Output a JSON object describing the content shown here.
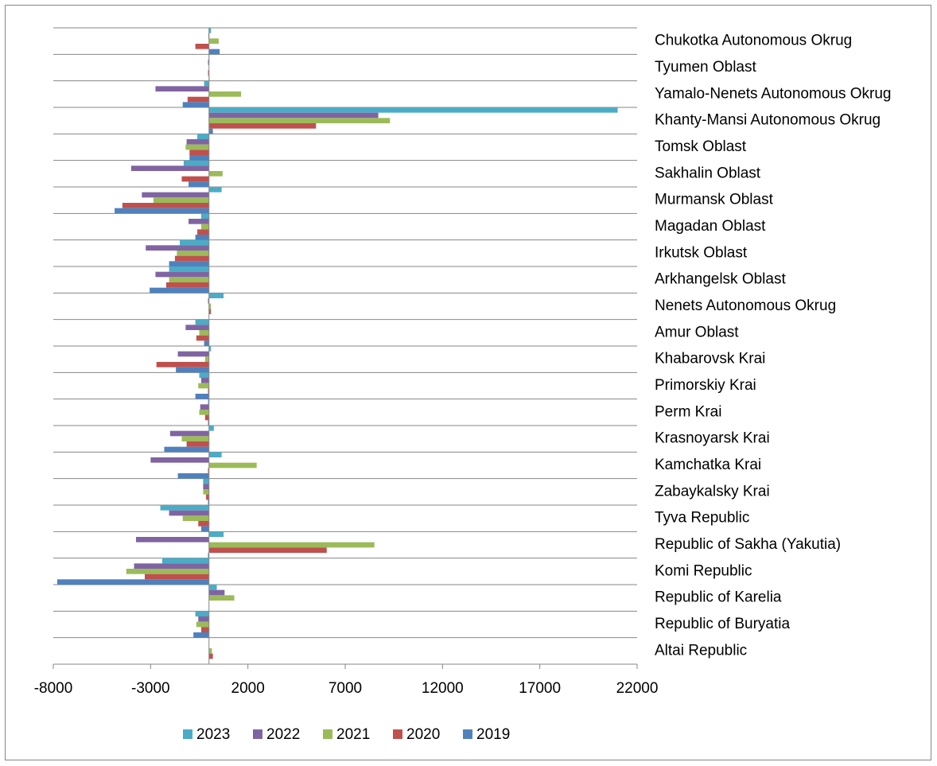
{
  "chart_data": {
    "type": "bar",
    "orientation": "horizontal",
    "categories": [
      "Altai Republic",
      "Republic of Buryatia",
      "Republic of Karelia",
      "Komi Republic",
      "Republic of Sakha (Yakutia)",
      "Tyva Republic",
      "Zabaykalsky Krai",
      "Kamchatka Krai",
      "Krasnoyarsk Krai",
      "Perm Krai",
      "Primorskiy Krai",
      "Khabarovsk Krai",
      "Amur Oblast",
      "Nenets Autonomous Okrug",
      "Arkhangelsk Oblast",
      "Irkutsk Oblast",
      "Magadan Oblast",
      "Murmansk Oblast",
      "Sakhalin Oblast",
      "Tomsk Oblast",
      "Khanty-Mansi Autonomous Okrug",
      "Yamalo-Nenets Autonomous Okrug",
      "Tyumen Oblast",
      "Chukotka Autonomous Okrug"
    ],
    "series": [
      {
        "name": "2023",
        "color": "#4bacc6",
        "values": [
          0,
          -700,
          400,
          -2400,
          750,
          -2500,
          -300,
          650,
          250,
          -50,
          -500,
          100,
          -700,
          750,
          -2050,
          -1500,
          -400,
          650,
          -1300,
          -600,
          21000,
          -250,
          20,
          100
        ]
      },
      {
        "name": "2022",
        "color": "#8064a2",
        "values": [
          0,
          -550,
          800,
          -3850,
          -3750,
          -2050,
          -300,
          -3000,
          -2000,
          -450,
          -400,
          -1600,
          -1200,
          -50,
          -2750,
          -3250,
          -1050,
          -3450,
          -4000,
          -1150,
          8700,
          -2750,
          -50,
          -30
        ]
      },
      {
        "name": "2021",
        "color": "#9bbb59",
        "values": [
          150,
          -650,
          1300,
          -4250,
          8500,
          -1350,
          -300,
          2450,
          -1400,
          -500,
          -550,
          -200,
          -500,
          100,
          -2050,
          -1650,
          -400,
          -2850,
          700,
          -1200,
          9300,
          1650,
          0,
          500
        ]
      },
      {
        "name": "2020",
        "color": "#c0504d",
        "values": [
          200,
          -400,
          0,
          -3300,
          6050,
          -550,
          -150,
          -50,
          -1150,
          -200,
          -50,
          -2700,
          -650,
          100,
          -2200,
          -1750,
          -600,
          -4450,
          -1400,
          -1000,
          5500,
          -1100,
          -50,
          -700
        ]
      },
      {
        "name": "2019",
        "color": "#4f81bd",
        "values": [
          0,
          -800,
          0,
          -7800,
          -50,
          -400,
          -50,
          -1600,
          -2300,
          -50,
          -700,
          -1700,
          -250,
          0,
          -3050,
          -2050,
          -700,
          -4850,
          -1050,
          -1000,
          200,
          -1350,
          30,
          550
        ]
      }
    ],
    "xlim": [
      -8000,
      22000
    ],
    "xticks": [
      -8000,
      -3000,
      2000,
      7000,
      12000,
      17000,
      22000
    ],
    "legend": "bottom"
  }
}
